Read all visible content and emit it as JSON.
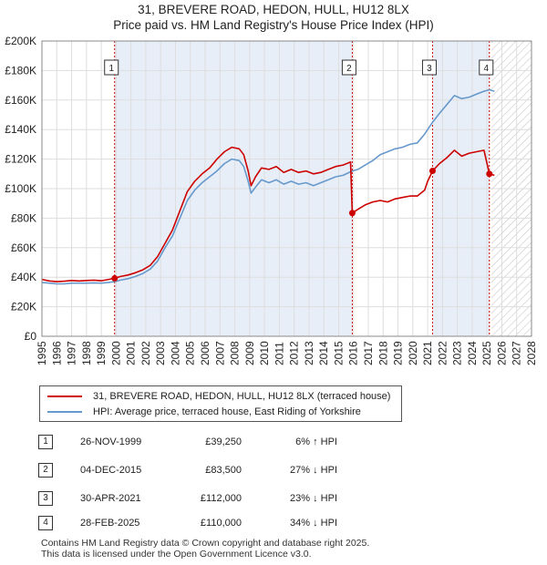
{
  "title_line1": "31, BREVERE ROAD, HEDON, HULL, HU12 8LX",
  "title_line2": "Price paid vs. HM Land Registry's House Price Index (HPI)",
  "colors": {
    "property": "#cc0000",
    "hpi": "#6699cc",
    "shade": "#e8eef8",
    "vline": "#cc0000"
  },
  "chart_data": {
    "type": "line",
    "xlim": [
      1995,
      2028
    ],
    "ylim": [
      0,
      200000
    ],
    "y_ticks": [
      0,
      20000,
      40000,
      60000,
      80000,
      100000,
      120000,
      140000,
      160000,
      180000,
      200000
    ],
    "y_tick_labels": [
      "£0",
      "£20K",
      "£40K",
      "£60K",
      "£80K",
      "£100K",
      "£120K",
      "£140K",
      "£160K",
      "£180K",
      "£200K"
    ],
    "x_ticks": [
      1995,
      1996,
      1997,
      1998,
      1999,
      2000,
      2001,
      2002,
      2003,
      2004,
      2005,
      2006,
      2007,
      2008,
      2009,
      2010,
      2011,
      2012,
      2013,
      2014,
      2015,
      2016,
      2017,
      2018,
      2019,
      2020,
      2021,
      2022,
      2023,
      2024,
      2025,
      2026,
      2027,
      2028
    ],
    "x_tick_labels": [
      "1995",
      "1996",
      "1997",
      "1998",
      "1999",
      "2000",
      "2001",
      "2002",
      "2003",
      "2004",
      "2005",
      "2006",
      "2007",
      "2008",
      "2009",
      "2010",
      "2011",
      "2012",
      "2013",
      "2014",
      "2015",
      "2016",
      "2017",
      "2018",
      "2019",
      "2020",
      "2021",
      "2022",
      "2023",
      "2024",
      "2025",
      "2026",
      "2027",
      "2028"
    ],
    "shaded_ranges": [
      [
        1999.9,
        2015.92
      ],
      [
        2021.33,
        2025.16
      ]
    ],
    "future_hatch_from": 2025.3,
    "series": [
      {
        "name": "31, BREVERE ROAD, HEDON, HULL, HU12 8LX (terraced house)",
        "color": "#cc0000",
        "points": [
          [
            1995.0,
            38500
          ],
          [
            1995.5,
            37500
          ],
          [
            1996.0,
            37000
          ],
          [
            1996.5,
            37300
          ],
          [
            1997.0,
            37800
          ],
          [
            1997.5,
            37500
          ],
          [
            1998.0,
            37800
          ],
          [
            1998.5,
            38000
          ],
          [
            1999.0,
            37600
          ],
          [
            1999.5,
            38500
          ],
          [
            1999.9,
            39250
          ],
          [
            2000.3,
            40500
          ],
          [
            2000.8,
            41500
          ],
          [
            2001.3,
            43000
          ],
          [
            2001.8,
            45000
          ],
          [
            2002.3,
            48000
          ],
          [
            2002.8,
            54000
          ],
          [
            2003.3,
            63000
          ],
          [
            2003.8,
            72000
          ],
          [
            2004.3,
            85000
          ],
          [
            2004.8,
            98000
          ],
          [
            2005.3,
            105000
          ],
          [
            2005.8,
            110000
          ],
          [
            2006.3,
            114000
          ],
          [
            2006.8,
            120000
          ],
          [
            2007.3,
            125000
          ],
          [
            2007.8,
            128000
          ],
          [
            2008.3,
            127000
          ],
          [
            2008.6,
            123000
          ],
          [
            2008.9,
            112000
          ],
          [
            2009.1,
            102000
          ],
          [
            2009.4,
            108000
          ],
          [
            2009.8,
            114000
          ],
          [
            2010.3,
            113000
          ],
          [
            2010.8,
            115000
          ],
          [
            2011.3,
            111000
          ],
          [
            2011.8,
            113000
          ],
          [
            2012.3,
            111000
          ],
          [
            2012.8,
            112000
          ],
          [
            2013.3,
            110000
          ],
          [
            2013.8,
            111000
          ],
          [
            2014.3,
            113000
          ],
          [
            2014.8,
            115000
          ],
          [
            2015.3,
            116000
          ],
          [
            2015.8,
            118000
          ],
          [
            2015.92,
            83500
          ],
          [
            2016.3,
            86000
          ],
          [
            2016.8,
            89000
          ],
          [
            2017.3,
            91000
          ],
          [
            2017.8,
            92000
          ],
          [
            2018.3,
            91000
          ],
          [
            2018.8,
            93000
          ],
          [
            2019.3,
            94000
          ],
          [
            2019.8,
            95000
          ],
          [
            2020.3,
            95000
          ],
          [
            2020.8,
            99000
          ],
          [
            2021.0,
            105000
          ],
          [
            2021.33,
            112000
          ],
          [
            2021.8,
            117000
          ],
          [
            2022.3,
            121000
          ],
          [
            2022.8,
            126000
          ],
          [
            2023.3,
            122000
          ],
          [
            2023.8,
            124000
          ],
          [
            2024.3,
            125000
          ],
          [
            2024.8,
            126000
          ],
          [
            2025.16,
            110000
          ],
          [
            2025.5,
            109000
          ]
        ]
      },
      {
        "name": "HPI: Average price, terraced house, East Riding of Yorkshire",
        "color": "#6699cc",
        "points": [
          [
            1995.0,
            36500
          ],
          [
            1995.5,
            36000
          ],
          [
            1996.0,
            35500
          ],
          [
            1996.5,
            35500
          ],
          [
            1997.0,
            36000
          ],
          [
            1997.5,
            36000
          ],
          [
            1998.0,
            36000
          ],
          [
            1998.5,
            36200
          ],
          [
            1999.0,
            36000
          ],
          [
            1999.5,
            36500
          ],
          [
            1999.9,
            37000
          ],
          [
            2000.3,
            38000
          ],
          [
            2000.8,
            39000
          ],
          [
            2001.3,
            40500
          ],
          [
            2001.8,
            42500
          ],
          [
            2002.3,
            45500
          ],
          [
            2002.8,
            51000
          ],
          [
            2003.3,
            60000
          ],
          [
            2003.8,
            68000
          ],
          [
            2004.3,
            80000
          ],
          [
            2004.8,
            92000
          ],
          [
            2005.3,
            99000
          ],
          [
            2005.8,
            104000
          ],
          [
            2006.3,
            108000
          ],
          [
            2006.8,
            112000
          ],
          [
            2007.3,
            117000
          ],
          [
            2007.8,
            120000
          ],
          [
            2008.3,
            119000
          ],
          [
            2008.6,
            115000
          ],
          [
            2008.9,
            105000
          ],
          [
            2009.1,
            97000
          ],
          [
            2009.4,
            101000
          ],
          [
            2009.8,
            106000
          ],
          [
            2010.3,
            104000
          ],
          [
            2010.8,
            106000
          ],
          [
            2011.3,
            103000
          ],
          [
            2011.8,
            105000
          ],
          [
            2012.3,
            103000
          ],
          [
            2012.8,
            104000
          ],
          [
            2013.3,
            102000
          ],
          [
            2013.8,
            104000
          ],
          [
            2014.3,
            106000
          ],
          [
            2014.8,
            108000
          ],
          [
            2015.3,
            109000
          ],
          [
            2015.92,
            112000
          ],
          [
            2016.3,
            113000
          ],
          [
            2016.8,
            116000
          ],
          [
            2017.3,
            119000
          ],
          [
            2017.8,
            123000
          ],
          [
            2018.3,
            125000
          ],
          [
            2018.8,
            127000
          ],
          [
            2019.3,
            128000
          ],
          [
            2019.8,
            130000
          ],
          [
            2020.3,
            131000
          ],
          [
            2020.8,
            137000
          ],
          [
            2021.33,
            145000
          ],
          [
            2021.8,
            151000
          ],
          [
            2022.3,
            157000
          ],
          [
            2022.8,
            163000
          ],
          [
            2023.3,
            161000
          ],
          [
            2023.8,
            162000
          ],
          [
            2024.3,
            164000
          ],
          [
            2024.8,
            166000
          ],
          [
            2025.16,
            167000
          ],
          [
            2025.5,
            166000
          ]
        ]
      }
    ],
    "sale_markers": [
      {
        "label": "1",
        "x": 1999.9,
        "y": 39250
      },
      {
        "label": "2",
        "x": 2015.92,
        "y": 83500
      },
      {
        "label": "3",
        "x": 2021.33,
        "y": 112000
      },
      {
        "label": "4",
        "x": 2025.16,
        "y": 110000
      }
    ]
  },
  "legend": {
    "property": "31, BREVERE ROAD, HEDON, HULL, HU12 8LX (terraced house)",
    "hpi": "HPI: Average price, terraced house, East Riding of Yorkshire"
  },
  "sales": [
    {
      "num": "1",
      "date": "26-NOV-1999",
      "price": "£39,250",
      "hpi": "6% ↑ HPI"
    },
    {
      "num": "2",
      "date": "04-DEC-2015",
      "price": "£83,500",
      "hpi": "27% ↓ HPI"
    },
    {
      "num": "3",
      "date": "30-APR-2021",
      "price": "£112,000",
      "hpi": "23% ↓ HPI"
    },
    {
      "num": "4",
      "date": "28-FEB-2025",
      "price": "£110,000",
      "hpi": "34% ↓ HPI"
    }
  ],
  "footer_line1": "Contains HM Land Registry data © Crown copyright and database right 2025.",
  "footer_line2": "This data is licensed under the Open Government Licence v3.0."
}
